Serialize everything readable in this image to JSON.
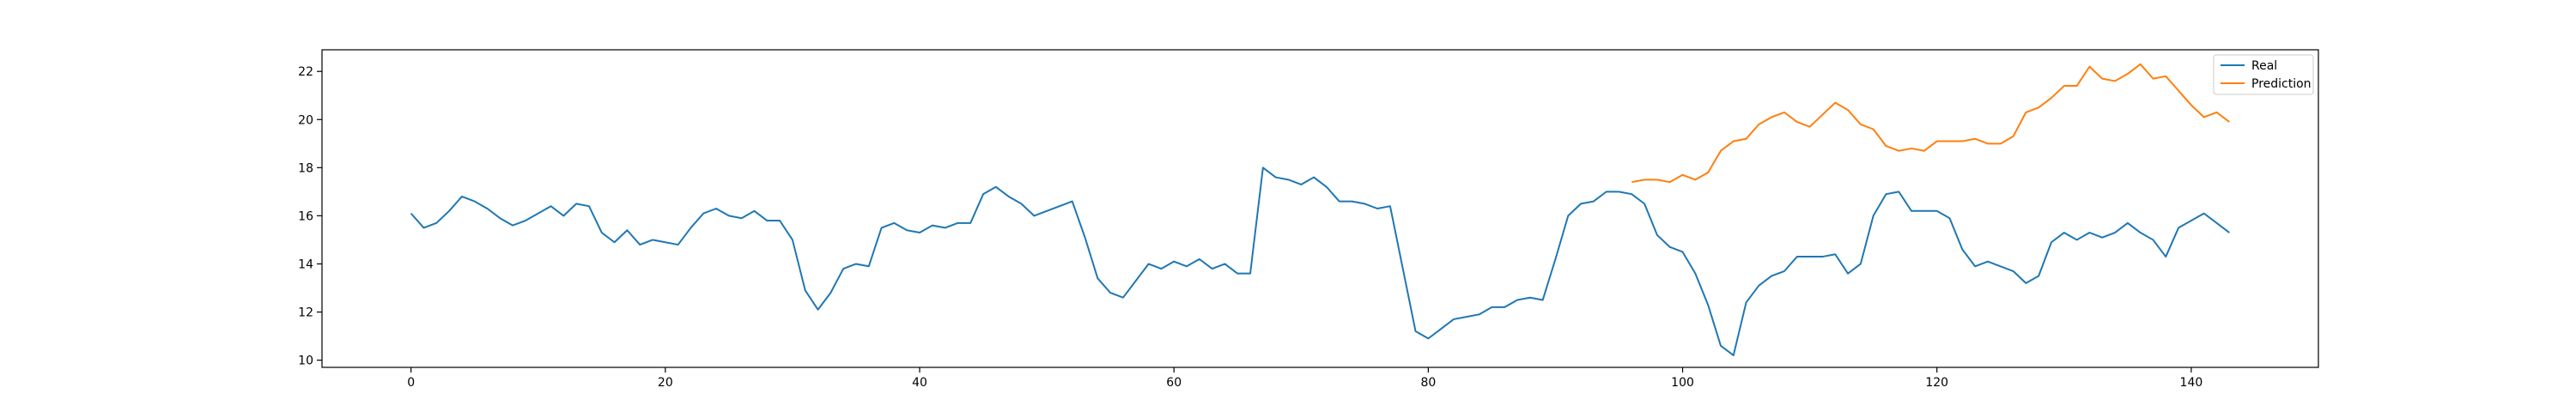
{
  "chart_data": {
    "type": "line",
    "title": "",
    "xlabel": "",
    "ylabel": "",
    "xlim": [
      -7,
      150
    ],
    "ylim": [
      9.7,
      22.9
    ],
    "xticks": [
      0,
      20,
      40,
      60,
      80,
      100,
      120,
      140
    ],
    "yticks": [
      10,
      12,
      14,
      16,
      18,
      20,
      22
    ],
    "grid": false,
    "legend_position": "top-right",
    "series": [
      {
        "name": "Real",
        "color": "#1f77b4",
        "x_start": 0,
        "values": [
          16.1,
          15.5,
          15.7,
          16.2,
          16.8,
          16.6,
          16.3,
          15.9,
          15.6,
          15.8,
          16.1,
          16.4,
          16.0,
          16.5,
          16.4,
          15.3,
          14.9,
          15.4,
          14.8,
          15.0,
          14.9,
          14.8,
          15.5,
          16.1,
          16.3,
          16.0,
          15.9,
          16.2,
          15.8,
          15.8,
          15.0,
          12.9,
          12.1,
          12.8,
          13.8,
          14.0,
          13.9,
          15.5,
          15.7,
          15.4,
          15.3,
          15.6,
          15.5,
          15.7,
          15.7,
          16.9,
          17.2,
          16.8,
          16.5,
          16.0,
          16.2,
          16.4,
          16.6,
          15.1,
          13.4,
          12.8,
          12.6,
          13.3,
          14.0,
          13.8,
          14.1,
          13.9,
          14.2,
          13.8,
          14.0,
          13.6,
          13.6,
          18.0,
          17.6,
          17.5,
          17.3,
          17.6,
          17.2,
          16.6,
          16.6,
          16.5,
          16.3,
          16.4,
          13.8,
          11.2,
          10.9,
          11.3,
          11.7,
          11.8,
          11.9,
          12.2,
          12.2,
          12.5,
          12.6,
          12.5,
          14.2,
          16.0,
          16.5,
          16.6,
          17.0,
          17.0,
          16.9,
          16.5,
          15.2,
          14.7,
          14.5,
          13.6,
          12.3,
          10.6,
          10.2,
          12.4,
          13.1,
          13.5,
          13.7,
          14.3,
          14.3,
          14.3,
          14.4,
          13.6,
          14.0,
          16.0,
          16.9,
          17.0,
          16.2,
          16.2,
          16.2,
          15.9,
          14.6,
          13.9,
          14.1,
          13.9,
          13.7,
          13.2,
          13.5,
          14.9,
          15.3,
          15.0,
          15.3,
          15.1,
          15.3,
          15.7,
          15.3,
          15.0,
          14.3,
          15.5,
          15.8,
          16.1,
          15.7,
          15.3
        ]
      },
      {
        "name": "Prediction",
        "color": "#ff7f0e",
        "x_start": 96,
        "values": [
          17.4,
          17.5,
          17.5,
          17.4,
          17.7,
          17.5,
          17.8,
          18.7,
          19.1,
          19.2,
          19.8,
          20.1,
          20.3,
          19.9,
          19.7,
          20.2,
          20.7,
          20.4,
          19.8,
          19.6,
          18.9,
          18.7,
          18.8,
          18.7,
          19.1,
          19.1,
          19.1,
          19.2,
          19.0,
          19.0,
          19.3,
          20.3,
          20.5,
          20.9,
          21.4,
          21.4,
          22.2,
          21.7,
          21.6,
          21.9,
          22.3,
          21.7,
          21.8,
          21.2,
          20.6,
          20.1,
          20.3,
          19.9
        ]
      }
    ]
  }
}
